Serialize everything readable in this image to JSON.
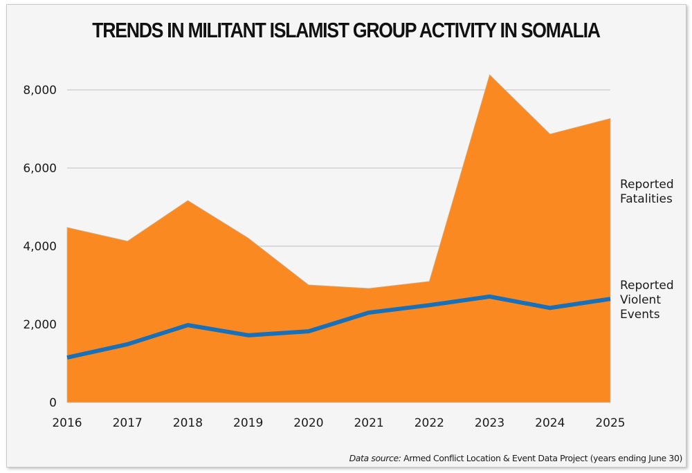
{
  "chart_data": {
    "type": "area",
    "title": "TRENDS IN MILITANT ISLAMIST GROUP ACTIVITY IN SOMALIA",
    "xlabel": "",
    "ylabel": "",
    "categories": [
      "2016",
      "2017",
      "2018",
      "2019",
      "2020",
      "2021",
      "2022",
      "2023",
      "2024",
      "2025"
    ],
    "ylim": [
      0,
      8000
    ],
    "yticks": [
      0,
      2000,
      4000,
      6000,
      8000
    ],
    "ytick_labels": [
      "0",
      "2,000",
      "4,000",
      "6,000",
      "8,000"
    ],
    "grid": true,
    "series": [
      {
        "name": "Reported Fatalities",
        "label_lines": [
          "Reported",
          "Fatalities"
        ],
        "kind": "area",
        "color": "#fb8922",
        "values": [
          4480,
          4130,
          5170,
          4210,
          3010,
          2920,
          3100,
          8390,
          6870,
          7270
        ]
      },
      {
        "name": "Reported Violent Events",
        "label_lines": [
          "Reported",
          "Violent",
          "Events"
        ],
        "kind": "line",
        "color": "#1870b9",
        "values": [
          1150,
          1490,
          1980,
          1720,
          1820,
          2300,
          2490,
          2710,
          2420,
          2650
        ]
      }
    ],
    "legend": "right, inline labels",
    "source_prefix": "Data source:",
    "source_text": " Armed Conflict Location & Event Data Project (years ending June 30)"
  }
}
